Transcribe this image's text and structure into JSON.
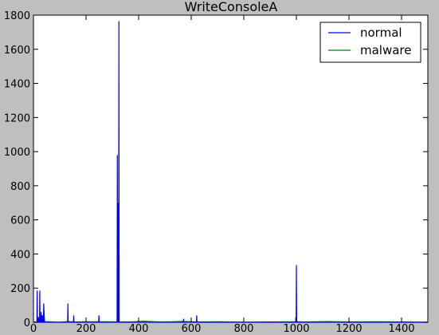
{
  "chart_data": {
    "type": "line",
    "title": "WriteConsoleA",
    "xlabel": "",
    "ylabel": "",
    "xlim": [
      0,
      1500
    ],
    "ylim": [
      0,
      1800
    ],
    "xticks": [
      0,
      200,
      400,
      600,
      800,
      1000,
      1200,
      1400
    ],
    "yticks": [
      0,
      200,
      400,
      600,
      800,
      1000,
      1200,
      1400,
      1600,
      1800
    ],
    "grid": false,
    "legend_position": "top-right",
    "series": [
      {
        "name": "normal",
        "color": "#0000ff",
        "x": [
          0,
          8,
          13,
          14,
          15,
          18,
          19,
          20,
          23,
          24,
          25,
          28,
          29,
          32,
          33,
          34,
          37,
          38,
          39,
          42,
          43,
          44,
          130,
          131,
          132,
          152,
          153,
          154,
          248,
          249,
          250,
          318,
          319,
          320,
          321,
          322,
          323,
          324,
          325,
          326,
          327,
          328,
          329,
          330,
          570,
          571,
          572,
          620,
          621,
          622,
          996,
          997,
          998,
          999,
          1000,
          1001,
          1002,
          1003,
          1500
        ],
        "y": [
          0,
          0,
          0,
          185,
          0,
          0,
          30,
          0,
          0,
          185,
          0,
          0,
          60,
          0,
          0,
          40,
          0,
          0,
          110,
          0,
          0,
          0,
          0,
          110,
          0,
          0,
          40,
          0,
          0,
          40,
          0,
          0,
          980,
          0,
          0,
          0,
          700,
          0,
          1765,
          0,
          0,
          0,
          0,
          0,
          0,
          20,
          0,
          0,
          40,
          0,
          0,
          0,
          30,
          0,
          335,
          0,
          0,
          0,
          0
        ]
      },
      {
        "name": "malware",
        "color": "#008000",
        "x": [
          0,
          5,
          10,
          15,
          20,
          25,
          60,
          100,
          130,
          160,
          200,
          260,
          330,
          380,
          420,
          480,
          530,
          560,
          580,
          640,
          700,
          800,
          900,
          1000,
          1030,
          1080,
          1120,
          1200,
          1300,
          1400,
          1500
        ],
        "y": [
          0,
          3,
          0,
          4,
          0,
          5,
          3,
          0,
          4,
          2,
          3,
          3,
          2,
          3,
          6,
          2,
          3,
          5,
          4,
          2,
          3,
          1,
          2,
          3,
          2,
          3,
          4,
          2,
          3,
          2,
          0
        ]
      }
    ]
  }
}
